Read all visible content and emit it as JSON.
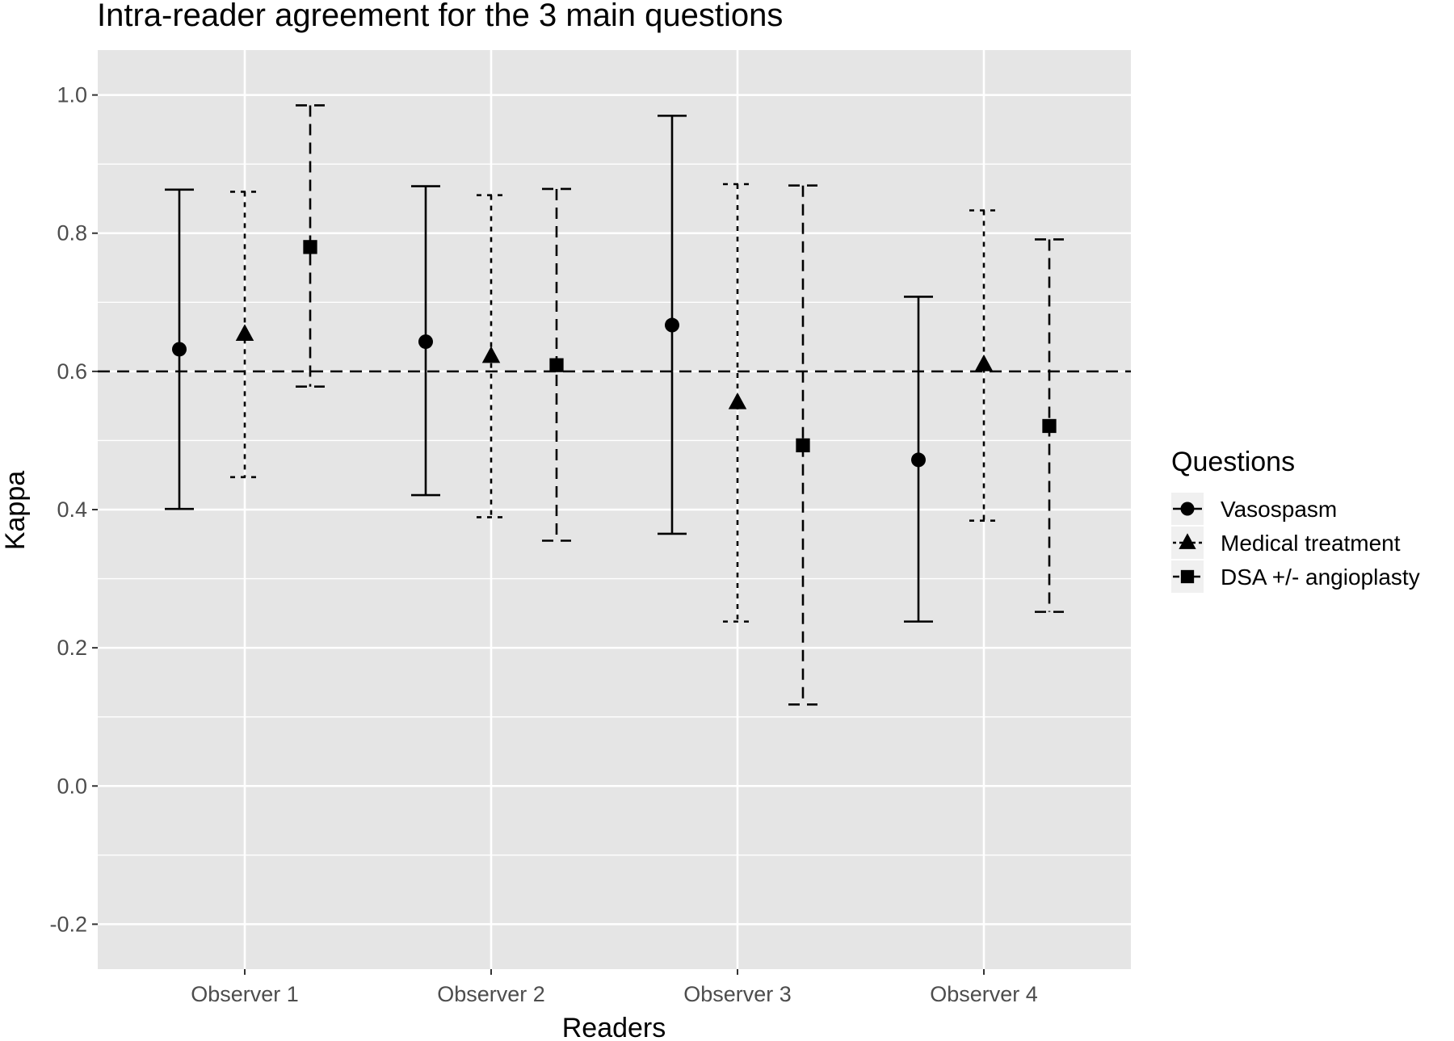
{
  "chart_data": {
    "type": "errorbar",
    "title": "Intra-reader agreement for the 3 main questions",
    "xlabel": "Readers",
    "ylabel": "Kappa",
    "categories": [
      "Observer 1",
      "Observer 2",
      "Observer 3",
      "Observer 4"
    ],
    "ylim": [
      -0.265,
      1.065
    ],
    "yticks": [
      "-0.2",
      "0.0",
      "0.2",
      "0.4",
      "0.6",
      "0.8",
      "1.0"
    ],
    "reference_line": {
      "y": 0.6,
      "style": "dashed"
    },
    "grid": true,
    "legend": {
      "title": "Questions",
      "position": "right"
    },
    "series": [
      {
        "name": "Vasospasm",
        "marker": "circle",
        "linestyle": "solid",
        "values": [
          0.632,
          0.643,
          0.667,
          0.472
        ],
        "lower": [
          0.401,
          0.421,
          0.365,
          0.238
        ],
        "upper": [
          0.863,
          0.868,
          0.97,
          0.708
        ]
      },
      {
        "name": "Medical treatment",
        "marker": "triangle",
        "linestyle": "dotted",
        "values": [
          0.654,
          0.622,
          0.555,
          0.61
        ],
        "lower": [
          0.447,
          0.389,
          0.238,
          0.384
        ],
        "upper": [
          0.86,
          0.855,
          0.871,
          0.833
        ]
      },
      {
        "name": "DSA +/- angioplasty",
        "marker": "square",
        "linestyle": "dashed",
        "values": [
          0.78,
          0.609,
          0.493,
          0.521
        ],
        "lower": [
          0.578,
          0.355,
          0.118,
          0.252
        ],
        "upper": [
          0.985,
          0.864,
          0.869,
          0.791
        ]
      }
    ]
  }
}
